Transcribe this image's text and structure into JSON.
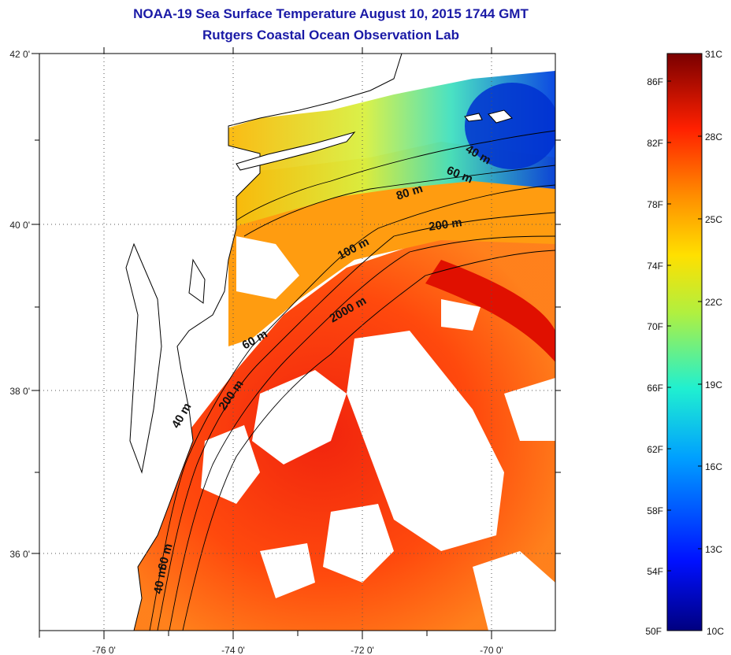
{
  "title": "NOAA-19 Sea Surface Temperature August 10, 2015 1744 GMT",
  "subtitle": "Rutgers Coastal Ocean Observation Lab",
  "map": {
    "lon_ticks": [
      "-76 0'",
      "-74 0'",
      "-72 0'",
      "-70 0'"
    ],
    "lat_ticks": [
      "42 0'",
      "40 0'",
      "38 0'",
      "36 0'"
    ],
    "isobaths": [
      "40 m",
      "60 m",
      "60 m",
      "80 m",
      "200 m",
      "100 m",
      "2000 m",
      "60 m",
      "200 m",
      "40 m",
      "40 m"
    ]
  },
  "colorbar": {
    "fahrenheit": [
      "86F",
      "82F",
      "78F",
      "74F",
      "70F",
      "66F",
      "62F",
      "58F",
      "54F",
      "50F"
    ],
    "celsius": [
      "31C",
      "28C",
      "25C",
      "22C",
      "19C",
      "16C",
      "13C",
      "10C"
    ]
  },
  "colors": {
    "title": "#1a1aa6",
    "land": "#ffffff",
    "coastline": "#000000"
  }
}
